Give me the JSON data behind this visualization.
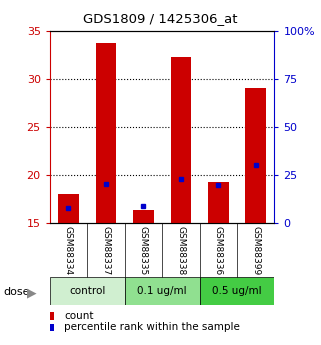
{
  "title": "GDS1809 / 1425306_at",
  "samples": [
    "GSM88334",
    "GSM88337",
    "GSM88335",
    "GSM88338",
    "GSM88336",
    "GSM88399"
  ],
  "count_values": [
    18.0,
    33.7,
    16.3,
    32.3,
    19.2,
    29.0
  ],
  "percentile_values": [
    7.5,
    20.0,
    8.5,
    22.5,
    19.5,
    30.0
  ],
  "count_base": 15.0,
  "ylim_left": [
    15,
    35
  ],
  "ylim_right": [
    0,
    100
  ],
  "yticks_left": [
    15,
    20,
    25,
    30,
    35
  ],
  "ytick_labels_left": [
    "15",
    "20",
    "25",
    "30",
    "35"
  ],
  "yticks_right": [
    0,
    25,
    50,
    75,
    100
  ],
  "ytick_labels_right": [
    "0",
    "25",
    "50",
    "75",
    "100%"
  ],
  "groups": [
    {
      "label": "control",
      "indices": [
        0,
        1
      ],
      "color": "#d0efd0"
    },
    {
      "label": "0.1 ug/ml",
      "indices": [
        2,
        3
      ],
      "color": "#90e090"
    },
    {
      "label": "0.5 ug/ml",
      "indices": [
        4,
        5
      ],
      "color": "#44cc44"
    }
  ],
  "bar_color": "#cc0000",
  "percentile_color": "#0000cc",
  "bar_width": 0.55,
  "label_count": "count",
  "label_percentile": "percentile rank within the sample",
  "dose_label": "dose",
  "xlabel_bg": "#c8c8c8",
  "tick_color_left": "#cc0000",
  "tick_color_right": "#0000cc",
  "fig_width": 3.21,
  "fig_height": 3.45,
  "fig_dpi": 100
}
